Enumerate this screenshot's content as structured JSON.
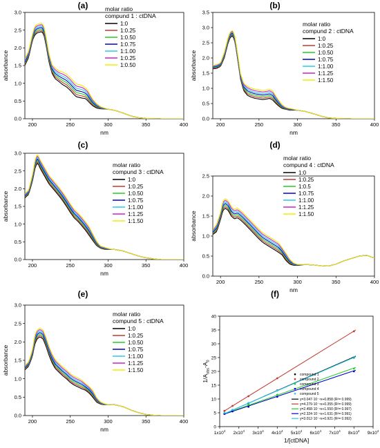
{
  "chart_data": [
    {
      "panel_label": "(a)",
      "type": "line",
      "xlabel": "nm",
      "ylabel": "absorbance",
      "xlim": [
        190,
        400
      ],
      "ylim": [
        0,
        3.0
      ],
      "xticks": [
        200,
        250,
        300,
        350,
        400
      ],
      "yticks": [
        0.0,
        0.5,
        1.0,
        1.5,
        2.0,
        2.5,
        3.0
      ],
      "tick_labels_x": [
        "200",
        "250",
        "300",
        "350",
        "400"
      ],
      "tick_labels_y": [
        "0.0",
        "0.5",
        "1.0",
        "1.5",
        "2.0",
        "2.5",
        "3.0"
      ],
      "legend_title": [
        "molar ratio",
        "compund 1 : ctDNA"
      ],
      "legend_position": "top-right",
      "series": [
        {
          "name": "1:0",
          "color": "#000000",
          "peak": 2.5
        },
        {
          "name": "1:0.25",
          "color": "#c0392b",
          "peak": 2.53
        },
        {
          "name": "1:0.50",
          "color": "#22cc22",
          "peak": 2.55
        },
        {
          "name": "1:0.75",
          "color": "#0000cc",
          "peak": 2.57
        },
        {
          "name": "1:1.00",
          "color": "#22ccee",
          "peak": 2.59
        },
        {
          "name": "1:0.25",
          "color": "#cc22cc",
          "peak": 2.61
        },
        {
          "name": "1:0.50",
          "color": "#eeee00",
          "peak": 2.63
        }
      ],
      "shape_x": [
        190,
        195,
        200,
        203,
        206,
        209,
        212,
        215,
        218,
        222,
        226,
        230,
        235,
        240,
        245,
        250,
        255,
        258,
        262,
        266,
        270,
        273,
        276,
        280,
        285,
        290,
        295,
        300,
        310,
        320,
        330,
        340,
        350,
        370,
        400
      ],
      "shape_y": [
        1.6,
        1.82,
        2.3,
        2.48,
        2.54,
        2.56,
        2.58,
        2.5,
        2.2,
        1.7,
        1.4,
        1.28,
        1.2,
        1.14,
        1.08,
        0.98,
        0.86,
        0.8,
        0.78,
        0.76,
        0.72,
        0.66,
        0.56,
        0.45,
        0.36,
        0.31,
        0.29,
        0.27,
        0.23,
        0.16,
        0.08,
        0.03,
        0.01,
        0.0,
        0.0
      ],
      "spread_y": [
        0.03,
        0.03,
        0.03,
        0.04,
        0.04,
        0.04,
        0.04,
        0.04,
        0.04,
        0.04,
        0.04,
        0.05,
        0.05,
        0.06,
        0.06,
        0.06,
        0.06,
        0.06,
        0.06,
        0.06,
        0.05,
        0.05,
        0.04,
        0.03,
        0.02,
        0.01,
        0.005,
        0.0,
        0.0,
        0.0,
        0.0,
        0.0,
        0.0,
        0.0,
        0.0
      ]
    },
    {
      "panel_label": "(b)",
      "type": "line",
      "xlabel": "nm",
      "ylabel": "absorbance",
      "xlim": [
        190,
        400
      ],
      "ylim": [
        0,
        3.5
      ],
      "xticks": [
        200,
        250,
        300,
        350,
        400
      ],
      "yticks": [
        0.0,
        0.5,
        1.0,
        1.5,
        2.0,
        2.5,
        3.0,
        3.5
      ],
      "tick_labels_x": [
        "200",
        "250",
        "300",
        "350",
        "400"
      ],
      "tick_labels_y": [
        "0.0",
        "0.5",
        "1.0",
        "1.5",
        "2.0",
        "2.5",
        "3.0",
        "3.5"
      ],
      "legend_title": [
        "molar ratio",
        "compund 2 : ctDNA"
      ],
      "legend_position": "top-right",
      "series": [
        {
          "name": "1:0",
          "color": "#000000"
        },
        {
          "name": "1:0.25",
          "color": "#c0392b"
        },
        {
          "name": "1:0.50",
          "color": "#22cc22"
        },
        {
          "name": "1:0.75",
          "color": "#0000cc"
        },
        {
          "name": "1:1.00",
          "color": "#22ccee"
        },
        {
          "name": "1:1.25",
          "color": "#cc22cc"
        },
        {
          "name": "1:1.50",
          "color": "#eeee00"
        }
      ],
      "shape_x": [
        190,
        195,
        200,
        205,
        210,
        213,
        216,
        219,
        222,
        226,
        230,
        235,
        240,
        245,
        250,
        255,
        260,
        264,
        268,
        272,
        276,
        280,
        285,
        290,
        295,
        300,
        310,
        320,
        330,
        340,
        350,
        370,
        400
      ],
      "shape_y": [
        1.7,
        1.72,
        1.78,
        2.1,
        2.6,
        2.78,
        2.82,
        2.6,
        2.1,
        1.4,
        1.05,
        0.92,
        0.86,
        0.82,
        0.8,
        0.78,
        0.8,
        0.82,
        0.76,
        0.62,
        0.5,
        0.4,
        0.34,
        0.31,
        0.3,
        0.28,
        0.24,
        0.17,
        0.09,
        0.03,
        0.01,
        0.0,
        0.0
      ],
      "spread_y": [
        0.02,
        0.02,
        0.02,
        0.03,
        0.03,
        0.03,
        0.03,
        0.03,
        0.03,
        0.03,
        0.04,
        0.05,
        0.05,
        0.05,
        0.05,
        0.05,
        0.05,
        0.05,
        0.05,
        0.04,
        0.03,
        0.02,
        0.01,
        0.01,
        0.005,
        0.0,
        0.0,
        0.0,
        0.0,
        0.0,
        0.0,
        0.0,
        0.0
      ]
    },
    {
      "panel_label": "(c)",
      "type": "line",
      "xlabel": "nm",
      "ylabel": "absorbance",
      "xlim": [
        190,
        400
      ],
      "ylim": [
        0,
        3.0
      ],
      "xticks": [
        200,
        250,
        300,
        350,
        400
      ],
      "yticks": [
        0.0,
        0.5,
        1.0,
        1.5,
        2.0,
        2.5,
        3.0
      ],
      "tick_labels_x": [
        "200",
        "250",
        "300",
        "350",
        "400"
      ],
      "tick_labels_y": [
        "0.0",
        "0.5",
        "1.0",
        "1.5",
        "2.0",
        "2.5",
        "3.0"
      ],
      "legend_title": [
        "molar ratio",
        "compund 3 : ctDNA"
      ],
      "legend_position": "top-right",
      "series": [
        {
          "name": "1:0",
          "color": "#000000"
        },
        {
          "name": "1:0.25",
          "color": "#c0392b"
        },
        {
          "name": "1:0.50",
          "color": "#22cc22"
        },
        {
          "name": "1:0.75",
          "color": "#0000cc"
        },
        {
          "name": "1:1.00",
          "color": "#22ccee"
        },
        {
          "name": "1:1.25",
          "color": "#cc22cc"
        },
        {
          "name": "1:1.50",
          "color": "#eeee00"
        }
      ],
      "shape_x": [
        190,
        195,
        200,
        204,
        207,
        210,
        214,
        218,
        222,
        226,
        230,
        235,
        240,
        245,
        250,
        255,
        260,
        265,
        270,
        275,
        280,
        285,
        290,
        295,
        300,
        305,
        310,
        320,
        330,
        340,
        350,
        360,
        370,
        400
      ],
      "shape_y": [
        1.8,
        1.9,
        2.3,
        2.75,
        2.85,
        2.7,
        2.55,
        2.4,
        2.25,
        2.15,
        2.05,
        1.92,
        1.78,
        1.62,
        1.45,
        1.3,
        1.2,
        1.08,
        0.95,
        0.8,
        0.62,
        0.45,
        0.35,
        0.32,
        0.3,
        0.29,
        0.28,
        0.24,
        0.17,
        0.1,
        0.05,
        0.02,
        0.0,
        0.0
      ],
      "spread_y": [
        0.02,
        0.02,
        0.03,
        0.04,
        0.04,
        0.04,
        0.04,
        0.04,
        0.04,
        0.04,
        0.04,
        0.04,
        0.04,
        0.04,
        0.04,
        0.04,
        0.04,
        0.04,
        0.04,
        0.04,
        0.03,
        0.02,
        0.01,
        0.01,
        0.005,
        0.0,
        0.0,
        0.0,
        0.0,
        0.0,
        0.0,
        0.0,
        0.0,
        0.0
      ]
    },
    {
      "panel_label": "(d)",
      "type": "line",
      "xlabel": "nm",
      "ylabel": "absorbance",
      "xlim": [
        190,
        400
      ],
      "ylim": [
        0,
        2.5
      ],
      "xticks": [
        200,
        250,
        300,
        350,
        400
      ],
      "yticks": [
        0.0,
        0.5,
        1.0,
        1.5,
        2.0,
        2.5
      ],
      "tick_labels_x": [
        "200",
        "250",
        "300",
        "350",
        "400"
      ],
      "tick_labels_y": [
        "0.0",
        "0.5",
        "1.0",
        "1.5",
        "2.0",
        "2.5"
      ],
      "legend_title": [
        "molar ratio",
        "compund 4 : ctDNA"
      ],
      "legend_position": "top-right",
      "series": [
        {
          "name": "1:0",
          "color": "#000000"
        },
        {
          "name": "1:0.25",
          "color": "#c0392b"
        },
        {
          "name": "1:0.5",
          "color": "#22cc22"
        },
        {
          "name": "1:0.75",
          "color": "#0000cc"
        },
        {
          "name": "1:1.00",
          "color": "#22ccee"
        },
        {
          "name": "1:1.25",
          "color": "#cc22cc"
        },
        {
          "name": "1:1.50",
          "color": "#eeee00"
        }
      ],
      "shape_x": [
        190,
        195,
        200,
        203,
        206,
        210,
        214,
        218,
        222,
        226,
        230,
        235,
        240,
        245,
        250,
        255,
        260,
        265,
        270,
        275,
        280,
        285,
        290,
        295,
        300,
        310,
        320,
        330,
        340,
        350,
        360,
        370,
        380,
        390,
        400
      ],
      "shape_y": [
        1.1,
        1.2,
        1.5,
        1.75,
        1.82,
        1.76,
        1.62,
        1.55,
        1.58,
        1.52,
        1.45,
        1.35,
        1.25,
        1.15,
        1.05,
        0.96,
        0.9,
        0.84,
        0.78,
        0.72,
        0.62,
        0.48,
        0.36,
        0.3,
        0.28,
        0.29,
        0.28,
        0.26,
        0.25,
        0.3,
        0.38,
        0.44,
        0.5,
        0.52,
        0.45
      ],
      "spread_y": [
        0.02,
        0.03,
        0.03,
        0.04,
        0.04,
        0.04,
        0.04,
        0.04,
        0.04,
        0.04,
        0.04,
        0.04,
        0.04,
        0.04,
        0.04,
        0.04,
        0.04,
        0.04,
        0.04,
        0.04,
        0.03,
        0.03,
        0.02,
        0.01,
        0.005,
        0.0,
        0.0,
        0.0,
        0.0,
        0.0,
        0.0,
        0.0,
        0.0,
        0.0,
        0.0
      ]
    },
    {
      "panel_label": "(e)",
      "type": "line",
      "xlabel": "nm",
      "ylabel": "absorbance",
      "xlim": [
        190,
        400
      ],
      "ylim": [
        0,
        3.0
      ],
      "xticks": [
        200,
        250,
        300,
        350,
        400
      ],
      "yticks": [
        0.0,
        0.5,
        1.0,
        1.5,
        2.0,
        2.5,
        3.0
      ],
      "tick_labels_x": [
        "200",
        "250",
        "300",
        "350",
        "400"
      ],
      "tick_labels_y": [
        "0.0",
        "0.5",
        "1.0",
        "1.5",
        "2.0",
        "2.5",
        "3.0"
      ],
      "legend_title": [
        "molar ratio",
        "compund 5 : ctDNA"
      ],
      "legend_position": "top-right",
      "series": [
        {
          "name": "1:0",
          "color": "#000000"
        },
        {
          "name": "1:0.25",
          "color": "#c0392b"
        },
        {
          "name": "1:0.50",
          "color": "#22cc22"
        },
        {
          "name": "1:0.75",
          "color": "#0000cc"
        },
        {
          "name": "1:1.00",
          "color": "#22ccee"
        },
        {
          "name": "1:1.25",
          "color": "#cc22cc"
        },
        {
          "name": "1:1.50",
          "color": "#eeee00"
        }
      ],
      "shape_x": [
        190,
        195,
        200,
        203,
        206,
        210,
        214,
        218,
        222,
        226,
        230,
        235,
        240,
        245,
        250,
        255,
        260,
        265,
        270,
        275,
        280,
        285,
        290,
        295,
        300,
        310,
        320,
        330,
        340,
        350,
        360,
        370,
        400
      ],
      "shape_y": [
        1.3,
        1.4,
        1.7,
        2.05,
        2.2,
        2.26,
        2.2,
        2.0,
        1.75,
        1.55,
        1.4,
        1.3,
        1.2,
        1.12,
        1.02,
        0.95,
        0.9,
        0.85,
        0.78,
        0.7,
        0.58,
        0.42,
        0.34,
        0.31,
        0.3,
        0.29,
        0.24,
        0.15,
        0.08,
        0.03,
        0.01,
        0.0,
        0.0
      ],
      "spread_y": [
        0.02,
        0.02,
        0.03,
        0.04,
        0.04,
        0.04,
        0.04,
        0.04,
        0.04,
        0.04,
        0.04,
        0.04,
        0.04,
        0.04,
        0.04,
        0.04,
        0.04,
        0.04,
        0.03,
        0.03,
        0.03,
        0.02,
        0.01,
        0.005,
        0.0,
        0.0,
        0.0,
        0.0,
        0.0,
        0.0,
        0.0,
        0.0,
        0.0
      ]
    },
    {
      "panel_label": "(f)",
      "type": "scatter",
      "xlabel": "1/[ctDNA]",
      "ylabel": "1/A",
      "ylabel_sub": "obs",
      "ylabel_tail": "-A",
      "ylabel_sub2": "0",
      "xlim": [
        10000,
        90000
      ],
      "ylim": [
        0,
        40
      ],
      "xticks": [
        10000,
        20000,
        30000,
        40000,
        50000,
        60000,
        70000,
        80000,
        90000
      ],
      "tick_labels_x": [
        "1x10",
        "2x10",
        "3x10",
        "4x10",
        "5x10",
        "6x10",
        "7x10",
        "8x10",
        "9x10"
      ],
      "tick_exp": "4",
      "yticks": [
        0,
        5,
        10,
        15,
        20,
        25,
        30,
        35,
        40
      ],
      "tick_labels_y": [
        "0",
        "5",
        "10",
        "15",
        "20",
        "25",
        "30",
        "35",
        "40"
      ],
      "legend_position": "bottom-right",
      "series": [
        {
          "name": "compound 1",
          "color": "#000000",
          "x": [
            12500,
            16667,
            25000,
            40000,
            80000
          ],
          "y": [
            4.7,
            6.0,
            8.5,
            13.1,
            25.0
          ]
        },
        {
          "name": "compound 2",
          "color": "#c0392b",
          "x": [
            12500,
            16667,
            25000,
            40000,
            80000
          ],
          "y": [
            5.7,
            7.5,
            11.0,
            17.5,
            34.5
          ]
        },
        {
          "name": "compound 3",
          "color": "#22cc22",
          "x": [
            12500,
            16667,
            25000,
            40000,
            80000
          ],
          "y": [
            4.8,
            5.7,
            8.0,
            11.5,
            21.0
          ]
        },
        {
          "name": "compound 4",
          "color": "#0000cc",
          "x": [
            12500,
            16667,
            25000,
            40000,
            80000
          ],
          "y": [
            4.6,
            5.5,
            7.2,
            10.8,
            20.0
          ]
        },
        {
          "name": "compound 5",
          "color": "#22ccee",
          "x": [
            12500,
            16667,
            25000,
            40000,
            80000
          ],
          "y": [
            5.0,
            6.1,
            8.6,
            13.0,
            25.2
          ]
        }
      ],
      "fits": [
        {
          "label": "y=3.047·10⁻⁴x+0.858 (R²= 0.999)",
          "color": "#000000",
          "slope": 0.0003047,
          "intercept": 0.858
        },
        {
          "label": "y=4.279·10⁻⁴x+0.355 (R²= 0.999)",
          "color": "#c0392b",
          "slope": 0.0004279,
          "intercept": 0.355
        },
        {
          "label": "y=2.458·10⁻⁴x+1.550 (R²= 0.997)",
          "color": "#22cc22",
          "slope": 0.0002458,
          "intercept": 1.55
        },
        {
          "label": "y=2.324·10⁻⁴x+1.631 (R²= 0.991)",
          "color": "#0000cc",
          "slope": 0.0002324,
          "intercept": 1.631
        },
        {
          "label": "y=3.012·10⁻⁴x+0.921 (R²= 0.992)",
          "color": "#22ccee",
          "slope": 0.0003012,
          "intercept": 0.921
        }
      ]
    }
  ]
}
